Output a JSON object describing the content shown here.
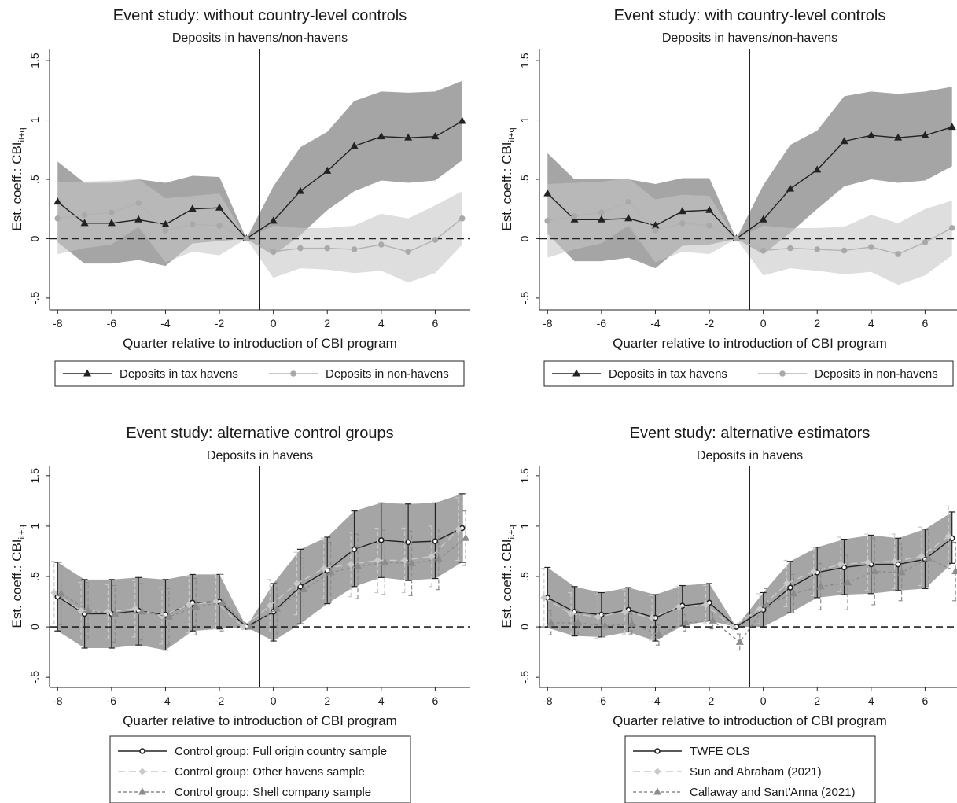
{
  "chart_data": [
    {
      "type": "line",
      "title": "Event study: without country-level controls",
      "subtitle": "Deposits in havens/non-havens",
      "xlabel": "Quarter relative to introduction of CBI program",
      "ylabel": "Est. coeff.: CBI",
      "ylabel_sub": "it+q",
      "x": [
        -8,
        -7,
        -6,
        -5,
        -4,
        -3,
        -2,
        -1,
        0,
        1,
        2,
        3,
        4,
        5,
        6,
        7
      ],
      "xlim": [
        -8.3,
        7.3
      ],
      "ylim": [
        -0.6,
        1.6
      ],
      "xticks": [
        "-8",
        "-6",
        "-4",
        "-2",
        "0",
        "2",
        "4",
        "6"
      ],
      "yticks": [
        "-.5",
        "0",
        ".5",
        "1",
        "1.5"
      ],
      "event_line_x": -0.5,
      "series": [
        {
          "name": "Deposits in tax havens",
          "style": "dark",
          "marker": "triangle",
          "values": [
            0.31,
            0.13,
            0.13,
            0.16,
            0.12,
            0.25,
            0.26,
            0.0,
            0.15,
            0.4,
            0.57,
            0.78,
            0.86,
            0.85,
            0.86,
            0.99
          ],
          "ci_low": [
            -0.03,
            -0.21,
            -0.21,
            -0.18,
            -0.23,
            -0.04,
            -0.02,
            0.0,
            -0.14,
            0.03,
            0.24,
            0.4,
            0.49,
            0.47,
            0.49,
            0.66
          ],
          "ci_high": [
            0.65,
            0.47,
            0.47,
            0.5,
            0.47,
            0.53,
            0.52,
            0.0,
            0.44,
            0.77,
            0.9,
            1.16,
            1.24,
            1.23,
            1.24,
            1.33
          ]
        },
        {
          "name": "Deposits in non-havens",
          "style": "light",
          "marker": "circle",
          "values": [
            0.17,
            0.2,
            0.22,
            0.3,
            0.07,
            0.12,
            0.11,
            0.0,
            -0.11,
            -0.08,
            -0.08,
            -0.09,
            -0.05,
            -0.11,
            -0.01,
            0.17
          ],
          "ci_low": [
            -0.13,
            -0.08,
            -0.05,
            0.1,
            -0.2,
            -0.11,
            -0.14,
            0.0,
            -0.33,
            -0.25,
            -0.26,
            -0.29,
            -0.27,
            -0.37,
            -0.29,
            -0.05
          ],
          "ci_high": [
            0.48,
            0.48,
            0.49,
            0.5,
            0.34,
            0.36,
            0.38,
            0.0,
            0.11,
            0.09,
            0.09,
            0.11,
            0.21,
            0.17,
            0.28,
            0.4
          ]
        }
      ],
      "legend": {
        "position": "bottom",
        "columns": 2
      }
    },
    {
      "type": "line",
      "title": "Event study: with country-level controls",
      "subtitle": "Deposits in havens/non-havens",
      "xlabel": "Quarter relative to introduction of CBI program",
      "ylabel": "Est. coeff.: CBI",
      "ylabel_sub": "it+q",
      "x": [
        -8,
        -7,
        -6,
        -5,
        -4,
        -3,
        -2,
        -1,
        0,
        1,
        2,
        3,
        4,
        5,
        6,
        7
      ],
      "xlim": [
        -8.3,
        7.3
      ],
      "ylim": [
        -0.6,
        1.6
      ],
      "xticks": [
        "-8",
        "-6",
        "-4",
        "-2",
        "0",
        "2",
        "4",
        "6"
      ],
      "yticks": [
        "-.5",
        "0",
        ".5",
        "1",
        "1.5"
      ],
      "event_line_x": -0.5,
      "series": [
        {
          "name": "Deposits in tax havens",
          "style": "dark",
          "marker": "triangle",
          "values": [
            0.38,
            0.16,
            0.16,
            0.17,
            0.11,
            0.23,
            0.24,
            0.0,
            0.16,
            0.42,
            0.58,
            0.82,
            0.87,
            0.85,
            0.87,
            0.94
          ],
          "ci_low": [
            0.04,
            -0.19,
            -0.19,
            -0.16,
            -0.25,
            -0.06,
            -0.05,
            0.0,
            -0.13,
            0.05,
            0.25,
            0.44,
            0.5,
            0.47,
            0.49,
            0.61
          ],
          "ci_high": [
            0.72,
            0.5,
            0.5,
            0.5,
            0.46,
            0.51,
            0.51,
            0.0,
            0.45,
            0.79,
            0.91,
            1.2,
            1.24,
            1.22,
            1.24,
            1.28
          ]
        },
        {
          "name": "Deposits in non-havens",
          "style": "light",
          "marker": "circle",
          "values": [
            0.15,
            0.19,
            0.22,
            0.31,
            0.07,
            0.13,
            0.11,
            0.0,
            -0.1,
            -0.08,
            -0.09,
            -0.1,
            -0.07,
            -0.13,
            -0.03,
            0.09
          ],
          "ci_low": [
            -0.16,
            -0.09,
            -0.04,
            0.11,
            -0.2,
            -0.11,
            -0.13,
            0.0,
            -0.31,
            -0.25,
            -0.27,
            -0.3,
            -0.28,
            -0.39,
            -0.31,
            -0.14
          ],
          "ci_high": [
            0.46,
            0.47,
            0.48,
            0.51,
            0.33,
            0.37,
            0.36,
            0.0,
            0.11,
            0.09,
            0.09,
            0.1,
            0.2,
            0.13,
            0.25,
            0.32
          ]
        }
      ],
      "legend": {
        "position": "bottom",
        "columns": 2
      }
    },
    {
      "type": "line",
      "title": "Event study: alternative control groups",
      "subtitle": "Deposits in havens",
      "xlabel": "Quarter relative to introduction of CBI program",
      "ylabel": "Est. coeff.: CBI",
      "ylabel_sub": "it+q",
      "x": [
        -8,
        -7,
        -6,
        -5,
        -4,
        -3,
        -2,
        -1,
        0,
        1,
        2,
        3,
        4,
        5,
        6,
        7
      ],
      "xlim": [
        -8.3,
        7.3
      ],
      "ylim": [
        -0.6,
        1.6
      ],
      "xticks": [
        "-8",
        "-6",
        "-4",
        "-2",
        "0",
        "2",
        "4",
        "6"
      ],
      "yticks": [
        "-.5",
        "0",
        ".5",
        "1",
        "1.5"
      ],
      "event_line_x": -0.5,
      "series": [
        {
          "name": "Control group: Full origin country sample",
          "style": "dark",
          "marker": "hollow-circle",
          "values": [
            0.3,
            0.13,
            0.13,
            0.16,
            0.12,
            0.24,
            0.25,
            0.0,
            0.15,
            0.4,
            0.56,
            0.77,
            0.86,
            0.84,
            0.85,
            0.98
          ],
          "ci_low": [
            -0.04,
            -0.21,
            -0.21,
            -0.18,
            -0.23,
            -0.04,
            -0.02,
            0.0,
            -0.14,
            0.03,
            0.23,
            0.4,
            0.49,
            0.46,
            0.48,
            0.64
          ],
          "ci_high": [
            0.64,
            0.47,
            0.47,
            0.49,
            0.47,
            0.52,
            0.52,
            0.0,
            0.43,
            0.77,
            0.89,
            1.15,
            1.23,
            1.22,
            1.23,
            1.32
          ]
        },
        {
          "name": "Control group: Other havens sample",
          "style": "vlight",
          "marker": "diamond",
          "values": [
            0.34,
            0.16,
            0.15,
            0.18,
            0.11,
            0.22,
            0.25,
            0.0,
            0.21,
            0.43,
            0.58,
            0.62,
            0.66,
            0.66,
            0.7,
            0.97
          ],
          "ci_low": [
            0.03,
            -0.12,
            -0.12,
            -0.1,
            -0.17,
            -0.06,
            -0.02,
            0.0,
            -0.05,
            0.12,
            0.28,
            0.3,
            0.34,
            0.34,
            0.4,
            0.66
          ],
          "ci_high": [
            0.65,
            0.44,
            0.42,
            0.46,
            0.39,
            0.5,
            0.52,
            0.0,
            0.47,
            0.74,
            0.88,
            0.94,
            0.98,
            0.98,
            1.0,
            1.28
          ]
        },
        {
          "name": "Control group: Shell company sample",
          "style": "mid",
          "marker": "triangle",
          "values": [
            0.33,
            0.16,
            0.13,
            0.15,
            0.1,
            0.2,
            0.24,
            0.0,
            0.18,
            0.37,
            0.54,
            0.6,
            0.64,
            0.63,
            0.67,
            0.88
          ],
          "ci_low": [
            0.02,
            -0.12,
            -0.15,
            -0.13,
            -0.18,
            -0.08,
            -0.04,
            0.0,
            -0.08,
            0.06,
            0.24,
            0.28,
            0.32,
            0.31,
            0.37,
            0.61
          ],
          "ci_high": [
            0.64,
            0.44,
            0.41,
            0.43,
            0.38,
            0.48,
            0.52,
            0.0,
            0.44,
            0.68,
            0.84,
            0.92,
            0.96,
            0.95,
            0.97,
            1.15
          ]
        }
      ],
      "legend": {
        "position": "bottom",
        "columns": 1
      }
    },
    {
      "type": "line",
      "title": "Event study: alternative estimators",
      "subtitle": "Deposits in havens",
      "xlabel": "Quarter relative to introduction of CBI program",
      "ylabel": "Est. coeff.: CBI",
      "ylabel_sub": "it+q",
      "x": [
        -8,
        -7,
        -6,
        -5,
        -4,
        -3,
        -2,
        -1,
        0,
        1,
        2,
        3,
        4,
        5,
        6,
        7
      ],
      "xlim": [
        -8.3,
        7.3
      ],
      "ylim": [
        -0.6,
        1.6
      ],
      "xticks": [
        "-8",
        "-6",
        "-4",
        "-2",
        "0",
        "2",
        "4",
        "6"
      ],
      "yticks": [
        "-.5",
        "0",
        ".5",
        "1",
        "1.5"
      ],
      "event_line_x": -0.5,
      "series": [
        {
          "name": "TWFE OLS",
          "style": "dark",
          "marker": "hollow-circle",
          "values": [
            0.29,
            0.15,
            0.12,
            0.17,
            0.09,
            0.21,
            0.24,
            0.0,
            0.17,
            0.39,
            0.54,
            0.59,
            0.62,
            0.62,
            0.67,
            0.88
          ],
          "ci_low": [
            -0.01,
            -0.09,
            -0.1,
            -0.05,
            -0.14,
            0.01,
            0.06,
            0.0,
            0.0,
            0.14,
            0.29,
            0.32,
            0.33,
            0.36,
            0.38,
            0.63
          ],
          "ci_high": [
            0.59,
            0.4,
            0.34,
            0.39,
            0.32,
            0.41,
            0.43,
            0.0,
            0.34,
            0.65,
            0.79,
            0.87,
            0.91,
            0.88,
            0.97,
            1.14
          ]
        },
        {
          "name": "Sun and Abraham (2021)",
          "style": "vlight",
          "marker": "diamond",
          "values": [
            0.29,
            0.13,
            0.1,
            0.15,
            0.09,
            0.2,
            0.22,
            0.0,
            0.18,
            0.43,
            0.55,
            0.62,
            0.64,
            0.65,
            0.7,
            0.9
          ],
          "ci_low": [
            0.0,
            -0.08,
            -0.11,
            -0.07,
            -0.13,
            0.0,
            0.04,
            0.0,
            0.03,
            0.2,
            0.31,
            0.35,
            0.36,
            0.38,
            0.41,
            0.6
          ],
          "ci_high": [
            0.58,
            0.34,
            0.32,
            0.37,
            0.31,
            0.4,
            0.41,
            0.0,
            0.33,
            0.66,
            0.79,
            0.89,
            0.92,
            0.92,
            0.99,
            1.2
          ]
        },
        {
          "name": "Callaway and Sant'Anna (2021)",
          "style": "mid",
          "marker": "triangle",
          "values": [
            0.04,
            0.04,
            0.01,
            0.03,
            -0.08,
            0.04,
            0.06,
            -0.15,
            0.22,
            0.33,
            0.4,
            0.44,
            0.55,
            0.54,
            0.68,
            0.55
          ],
          "ci_low": [
            -0.08,
            -0.08,
            -0.1,
            -0.07,
            -0.18,
            -0.04,
            -0.02,
            -0.23,
            0.06,
            0.14,
            0.17,
            0.17,
            0.22,
            0.26,
            0.4,
            0.26
          ],
          "ci_high": [
            0.16,
            0.16,
            0.12,
            0.13,
            0.02,
            0.12,
            0.14,
            -0.07,
            0.38,
            0.52,
            0.63,
            0.71,
            0.88,
            0.82,
            0.96,
            0.84
          ]
        }
      ],
      "legend": {
        "position": "bottom",
        "columns": 1
      }
    }
  ]
}
